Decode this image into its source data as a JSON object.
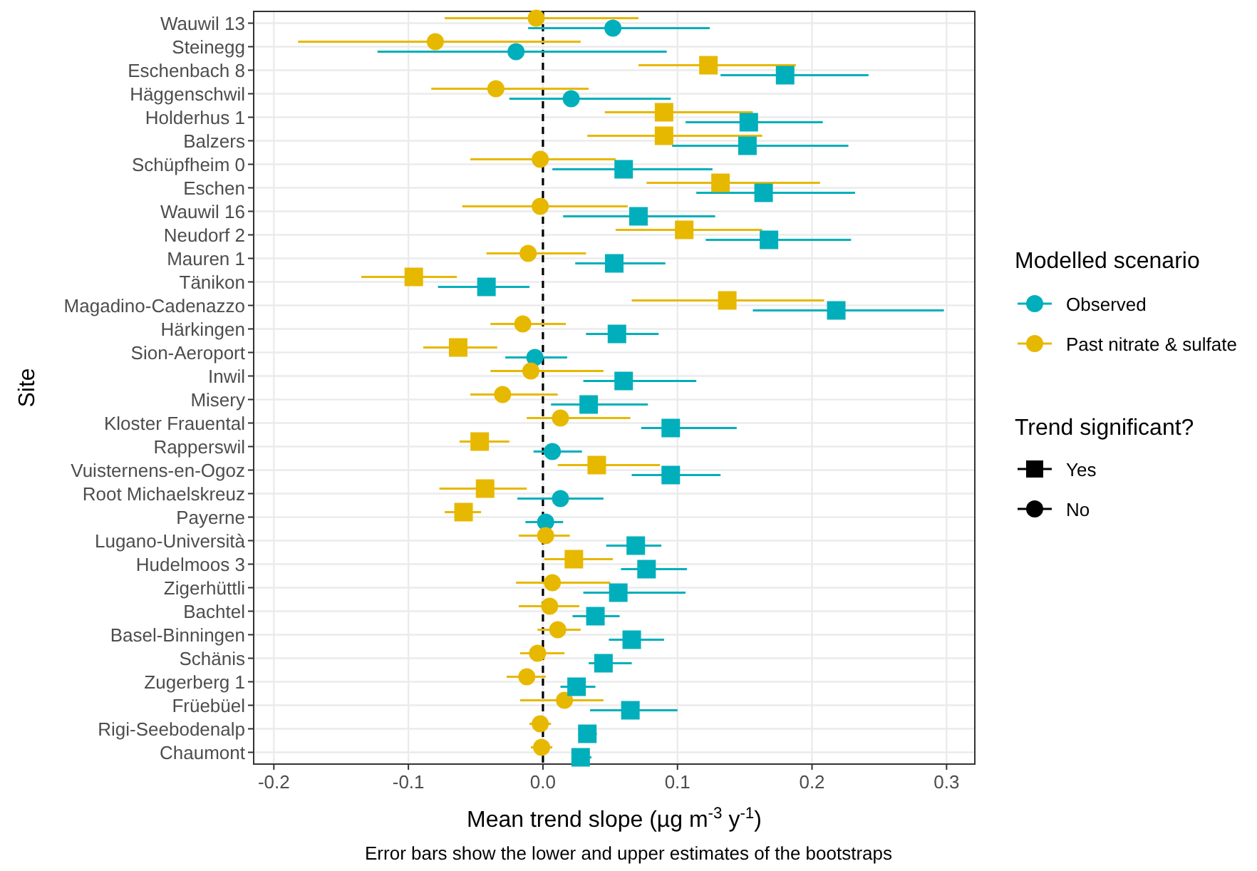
{
  "chart_data": {
    "type": "scatter",
    "orientation": "horizontal",
    "ylabel": "Site",
    "xlabel": "Mean trend slope (µg m$^{-3}$ y$^{-1}$)",
    "legend_title": "Modelled scenario",
    "legend": "right",
    "grid": true,
    "categories": [
      "Wauwil 13",
      "Steinegg",
      "Eschenbach 8",
      "Häggenschwil",
      "Holderhus 1",
      "Balzers",
      "Schüpfheim 0",
      "Eschen",
      "Wauwil 16",
      "Neudorf 2",
      "Mauren 1",
      "Tänikon",
      "Magadino-Cadenazzo",
      "Härkingen",
      "Sion-Aeroport",
      "Inwil",
      "Misery",
      "Kloster Frauental",
      "Rapperswil",
      "Vuisternens-en-Ogoz",
      "Root Michaelskreuz",
      "Payerne",
      "Lugano-Università",
      "Hudelmoos 3",
      "Zigerhüttli",
      "Bachtel",
      "Basel-Binningen",
      "Schänis",
      "Zugerberg 1",
      "Früebüel",
      "Rigi-Seebodenalp",
      "Chaumont"
    ],
    "xlim": [
      -0.215,
      0.321
    ],
    "xticks": [
      {
        "value": -0.2,
        "label": "-0.2"
      },
      {
        "value": -0.1,
        "label": "-0.1"
      },
      {
        "value": 0,
        "label": "0.0"
      },
      {
        "value": 0.1,
        "label": "0.1"
      },
      {
        "value": 0.2,
        "label": "0.2"
      },
      {
        "value": 0.3,
        "label": "0.3"
      }
    ],
    "ref_lines": [
      {
        "axis": "x",
        "value": 0,
        "color": "#000000",
        "line_style": "dashed"
      }
    ],
    "annotations": [
      "Error bars show the lower and upper estimates of the bootstraps",
      "Trend significant?",
      "Yes",
      "No"
    ],
    "series": [
      {
        "name": "Observed",
        "color": "#00afbb",
        "marker": "circle",
        "values": [
          0.052,
          -0.02,
          null,
          0.021,
          null,
          null,
          null,
          null,
          null,
          null,
          null,
          null,
          null,
          null,
          -0.006,
          null,
          null,
          null,
          0.007,
          null,
          0.013,
          0.002,
          null,
          null,
          null,
          null,
          null,
          null,
          null,
          null,
          null,
          null
        ],
        "errors": [
          [
            -0.011,
            0.124
          ],
          [
            -0.123,
            0.092
          ],
          null,
          [
            -0.025,
            0.095
          ],
          null,
          null,
          null,
          null,
          null,
          null,
          null,
          null,
          null,
          null,
          [
            -0.028,
            0.018
          ],
          null,
          null,
          null,
          [
            -0.007,
            0.029
          ],
          null,
          [
            -0.019,
            0.045
          ],
          [
            -0.013,
            0.015
          ],
          null,
          null,
          null,
          null,
          null,
          null,
          null,
          null,
          null,
          null
        ]
      },
      {
        "name": "Past nitrate & sulfate",
        "color": "#e7b800",
        "marker": "circle",
        "values": [
          -0.005,
          -0.08,
          null,
          -0.035,
          null,
          null,
          -0.002,
          null,
          -0.002,
          null,
          -0.011,
          null,
          null,
          -0.015,
          null,
          -0.009,
          -0.03,
          0.013,
          null,
          null,
          null,
          null,
          0.002,
          null,
          0.007,
          0.005,
          0.011,
          -0.004,
          -0.012,
          0.016,
          -0.002,
          -0.001
        ],
        "errors": [
          [
            -0.073,
            0.071
          ],
          [
            -0.182,
            0.028
          ],
          null,
          [
            -0.083,
            0.034
          ],
          null,
          null,
          [
            -0.054,
            0.054
          ],
          null,
          [
            -0.06,
            0.063
          ],
          null,
          [
            -0.042,
            0.032
          ],
          null,
          null,
          [
            -0.039,
            0.017
          ],
          null,
          [
            -0.039,
            0.045
          ],
          [
            -0.054,
            0.011
          ],
          [
            -0.012,
            0.065
          ],
          null,
          null,
          null,
          null,
          [
            -0.018,
            0.02
          ],
          null,
          [
            -0.02,
            0.05
          ],
          [
            -0.018,
            0.027
          ],
          [
            -0.004,
            0.028
          ],
          [
            -0.017,
            0.016
          ],
          [
            -0.027,
            0.002
          ],
          [
            -0.017,
            0.045
          ],
          [
            -0.01,
            0.006
          ],
          [
            -0.009,
            0.007
          ]
        ]
      },
      {
        "color": "#00afbb",
        "marker": "square",
        "values": [
          null,
          null,
          0.18,
          null,
          0.153,
          0.152,
          0.06,
          0.164,
          0.071,
          0.168,
          0.053,
          -0.042,
          0.218,
          0.055,
          null,
          0.06,
          0.034,
          0.095,
          null,
          0.095,
          null,
          null,
          0.069,
          0.077,
          0.056,
          0.039,
          0.066,
          0.045,
          0.025,
          0.065,
          0.033,
          0.028
        ],
        "errors": [
          null,
          null,
          [
            0.132,
            0.242
          ],
          null,
          [
            0.106,
            0.208
          ],
          [
            0.096,
            0.227
          ],
          [
            0.007,
            0.126
          ],
          [
            0.114,
            0.232
          ],
          [
            0.015,
            0.128
          ],
          [
            0.121,
            0.229
          ],
          [
            0.024,
            0.091
          ],
          [
            -0.078,
            -0.01
          ],
          [
            0.156,
            0.298
          ],
          [
            0.032,
            0.086
          ],
          null,
          [
            0.03,
            0.114
          ],
          [
            0.006,
            0.078
          ],
          [
            0.073,
            0.144
          ],
          null,
          [
            0.066,
            0.132
          ],
          null,
          null,
          [
            0.047,
            0.088
          ],
          [
            0.058,
            0.107
          ],
          [
            0.03,
            0.106
          ],
          [
            0.022,
            0.057
          ],
          [
            0.049,
            0.09
          ],
          [
            0.034,
            0.066
          ],
          [
            0.013,
            0.039
          ],
          [
            0.035,
            0.1
          ],
          [
            0.027,
            0.04
          ],
          [
            0.022,
            0.036
          ]
        ]
      },
      {
        "color": "#e7b800",
        "marker": "square",
        "values": [
          null,
          null,
          0.123,
          null,
          0.09,
          0.09,
          null,
          0.132,
          null,
          0.105,
          null,
          -0.096,
          0.137,
          null,
          -0.063,
          null,
          null,
          null,
          -0.047,
          0.04,
          -0.043,
          -0.059,
          null,
          0.023,
          null,
          null,
          null,
          null,
          null,
          null,
          null,
          null
        ],
        "errors": [
          null,
          null,
          [
            0.071,
            0.188
          ],
          null,
          [
            0.046,
            0.156
          ],
          [
            0.033,
            0.163
          ],
          null,
          [
            0.077,
            0.206
          ],
          null,
          [
            0.054,
            0.163
          ],
          null,
          [
            -0.135,
            -0.064
          ],
          [
            0.066,
            0.209
          ],
          null,
          [
            -0.089,
            -0.034
          ],
          null,
          null,
          null,
          [
            -0.062,
            -0.025
          ],
          [
            0.011,
            0.087
          ],
          [
            -0.077,
            -0.012
          ],
          [
            -0.073,
            -0.046
          ],
          null,
          [
            0.001,
            0.052
          ],
          null,
          null,
          null,
          null,
          null,
          null,
          null,
          null
        ]
      }
    ]
  }
}
